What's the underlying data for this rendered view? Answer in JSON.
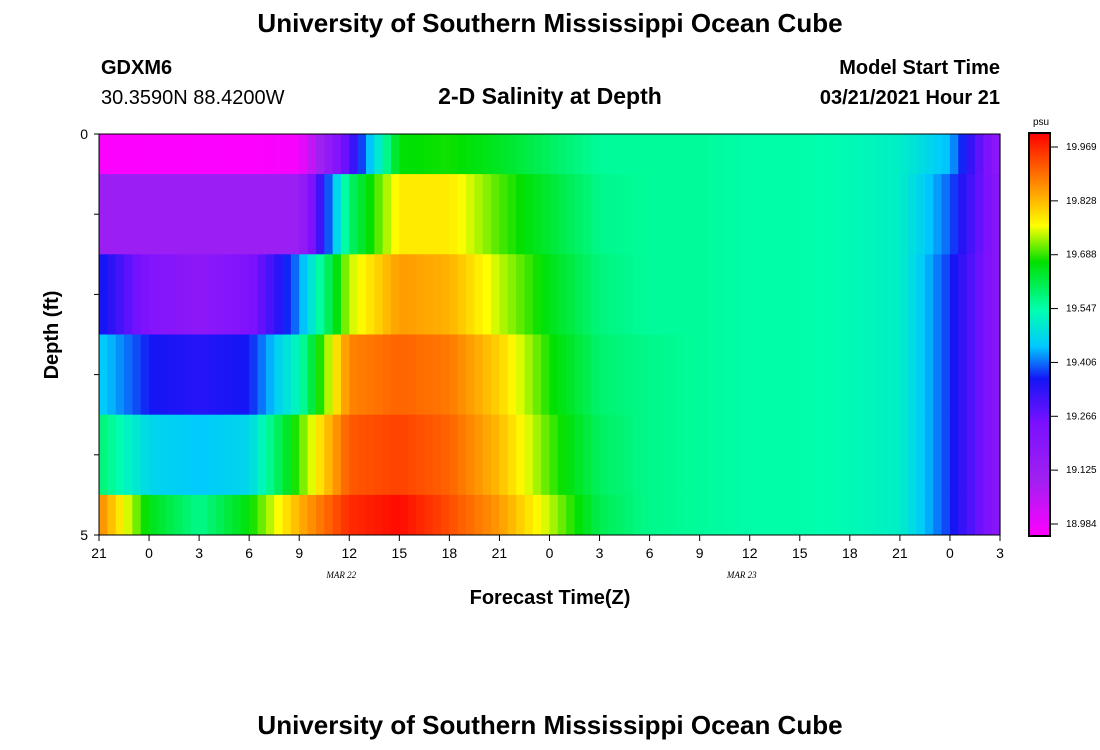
{
  "header": {
    "title": "University of Southern Mississippi Ocean Cube",
    "station": "GDXM6",
    "coords": "30.3590N 88.4200W",
    "chart_title": "2-D Salinity at Depth",
    "model_start_label": "Model Start Time",
    "model_start_value": "03/21/2021 Hour 21"
  },
  "footer": {
    "title": "University of Southern Mississippi Ocean Cube"
  },
  "chart_data": {
    "type": "heatmap",
    "title": "2-D Salinity at Depth",
    "xlabel": "Forecast Time(Z)",
    "ylabel": "Depth (ft)",
    "x_tick_labels": [
      "21",
      "0",
      "3",
      "6",
      "9",
      "12",
      "15",
      "18",
      "21",
      "0",
      "3",
      "6",
      "9",
      "12",
      "15",
      "18",
      "21",
      "0",
      "3"
    ],
    "date_labels": [
      {
        "text": "MAR 22",
        "at_tick": 5
      },
      {
        "text": "MAR 23",
        "at_tick": 13
      }
    ],
    "y_tick_labels": [
      "0",
      "5"
    ],
    "yrange": [
      0,
      5
    ],
    "colorbar": {
      "unit": "psu",
      "labels": [
        "19.969",
        "19.828",
        "19.688",
        "19.547",
        "19.406",
        "19.266",
        "19.125",
        "18.984"
      ],
      "min": 18.984,
      "max": 19.969
    },
    "x_hours": [
      0,
      3,
      6,
      9,
      12,
      15,
      18,
      21,
      24,
      27,
      30,
      33,
      36,
      39,
      42,
      45,
      48,
      51,
      54
    ],
    "layers": [
      {
        "depth_range": [
          0,
          0.5
        ],
        "values": [
          18.99,
          18.99,
          18.99,
          18.99,
          19.0,
          19.3,
          19.65,
          19.66,
          19.63,
          19.59,
          19.55,
          19.55,
          19.55,
          19.54,
          19.54,
          19.53,
          19.51,
          19.44,
          19.18
        ]
      },
      {
        "depth_range": [
          0.5,
          1.5
        ],
        "values": [
          19.14,
          19.14,
          19.14,
          19.14,
          19.14,
          19.58,
          19.76,
          19.76,
          19.68,
          19.62,
          19.56,
          19.55,
          19.55,
          19.54,
          19.54,
          19.53,
          19.51,
          19.4,
          19.2
        ]
      },
      {
        "depth_range": [
          1.5,
          2.5
        ],
        "values": [
          19.38,
          19.23,
          19.19,
          19.24,
          19.42,
          19.72,
          19.83,
          19.81,
          19.72,
          19.64,
          19.57,
          19.55,
          19.55,
          19.54,
          19.54,
          19.53,
          19.51,
          19.38,
          19.2
        ]
      },
      {
        "depth_range": [
          2.5,
          3.5
        ],
        "values": [
          19.46,
          19.37,
          19.35,
          19.37,
          19.53,
          19.85,
          19.88,
          19.86,
          19.78,
          19.66,
          19.58,
          19.56,
          19.55,
          19.54,
          19.54,
          19.53,
          19.51,
          19.38,
          19.2
        ]
      },
      {
        "depth_range": [
          3.5,
          4.5
        ],
        "values": [
          19.58,
          19.47,
          19.45,
          19.47,
          19.68,
          19.89,
          19.91,
          19.88,
          19.8,
          19.68,
          19.59,
          19.56,
          19.55,
          19.54,
          19.54,
          19.53,
          19.51,
          19.38,
          19.2
        ]
      },
      {
        "depth_range": [
          4.5,
          5
        ],
        "values": [
          19.85,
          19.64,
          19.56,
          19.65,
          19.81,
          19.93,
          19.96,
          19.9,
          19.83,
          19.72,
          19.6,
          19.56,
          19.55,
          19.54,
          19.54,
          19.53,
          19.51,
          19.38,
          19.2
        ]
      }
    ]
  }
}
